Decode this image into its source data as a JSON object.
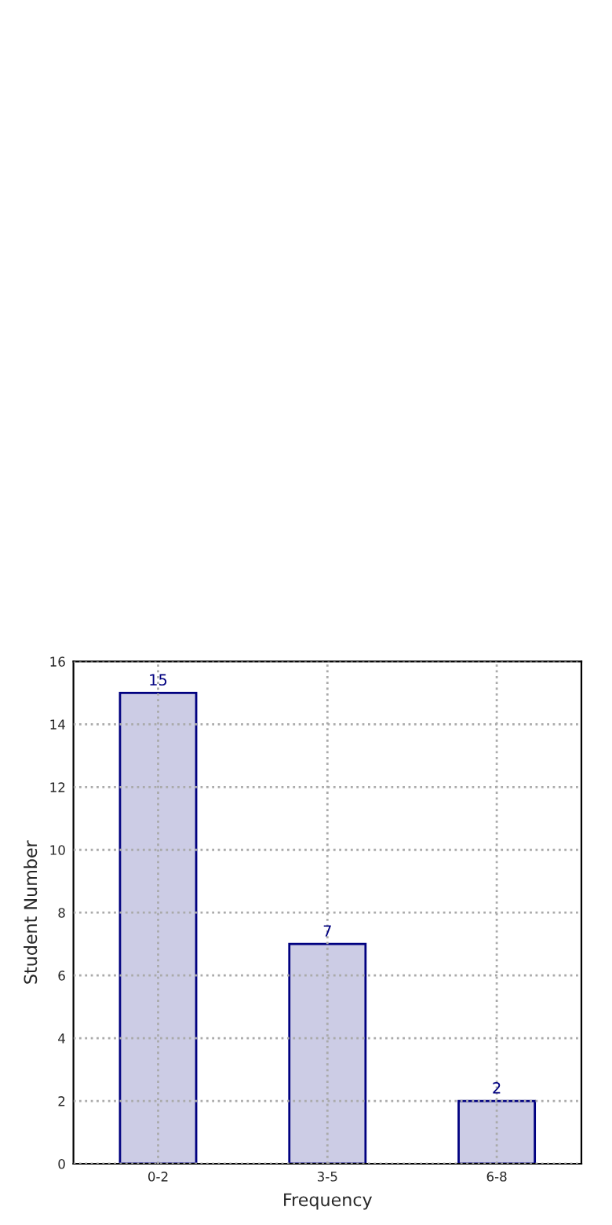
{
  "chart_data": {
    "type": "bar",
    "xlabel": "Frequency",
    "ylabel": "Student Number",
    "categories": [
      "0-2",
      "3-5",
      "6-8"
    ],
    "values": [
      15,
      7,
      2
    ],
    "color": "#cccce5",
    "ylim": [
      0,
      16
    ],
    "yticks": [
      0,
      2,
      4,
      6,
      8,
      10,
      12,
      14,
      16
    ],
    "grid": true,
    "data_labels": true
  }
}
